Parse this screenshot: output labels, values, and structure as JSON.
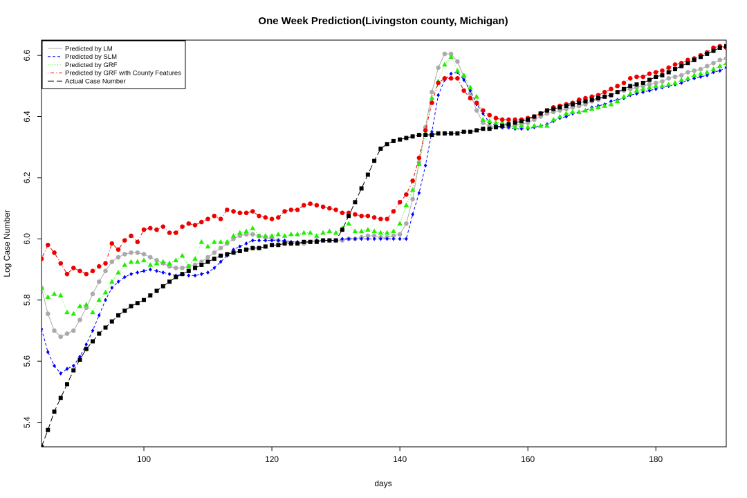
{
  "chart_data": {
    "type": "line",
    "title": "One Week Prediction(Livingston county, Michigan)",
    "xlabel": "days",
    "ylabel": "Log Case Number",
    "xlim": [
      84,
      191
    ],
    "ylim": [
      5.32,
      6.65
    ],
    "x_ticks": [
      100,
      120,
      140,
      160,
      180
    ],
    "y_ticks": [
      5.4,
      5.6,
      5.8,
      6.0,
      6.2,
      6.4,
      6.6
    ],
    "legend_position": "top-left",
    "grid": false,
    "x_start": 84,
    "series": [
      {
        "name": "Predicted by LM",
        "color": "#aaaaaa",
        "line": "solid",
        "marker": "circle",
        "values": [
          5.84,
          5.755,
          5.7,
          5.68,
          5.69,
          5.7,
          5.735,
          5.775,
          5.82,
          5.86,
          5.895,
          5.925,
          5.94,
          5.95,
          5.955,
          5.955,
          5.95,
          5.94,
          5.93,
          5.92,
          5.91,
          5.905,
          5.905,
          5.91,
          5.915,
          5.925,
          5.94,
          5.955,
          5.97,
          5.985,
          6.0,
          6.01,
          6.015,
          6.015,
          6.01,
          6.005,
          6.0,
          5.995,
          5.99,
          5.985,
          5.985,
          5.985,
          5.99,
          5.995,
          5.995,
          5.995,
          5.995,
          5.995,
          6.0,
          6.0,
          6.005,
          6.01,
          6.01,
          6.005,
          6.005,
          6.01,
          6.015,
          6.05,
          6.13,
          6.25,
          6.365,
          6.48,
          6.56,
          6.605,
          6.605,
          6.58,
          6.53,
          6.475,
          6.42,
          6.38,
          6.37,
          6.365,
          6.365,
          6.365,
          6.37,
          6.375,
          6.38,
          6.39,
          6.4,
          6.41,
          6.415,
          6.42,
          6.425,
          6.43,
          6.435,
          6.44,
          6.45,
          6.455,
          6.465,
          6.47,
          6.48,
          6.485,
          6.49,
          6.495,
          6.5,
          6.505,
          6.51,
          6.515,
          6.525,
          6.53,
          6.535,
          6.545,
          6.55,
          6.555,
          6.565,
          6.575,
          6.585,
          6.59,
          6.6,
          6.605,
          6.615
        ]
      },
      {
        "name": "Predicted by SLM",
        "color": "#0000ff",
        "line": "dashed",
        "marker": "diamond",
        "values": [
          5.705,
          5.63,
          5.585,
          5.56,
          5.575,
          5.585,
          5.615,
          5.655,
          5.7,
          5.75,
          5.8,
          5.84,
          5.86,
          5.875,
          5.885,
          5.89,
          5.895,
          5.9,
          5.895,
          5.89,
          5.885,
          5.88,
          5.885,
          5.88,
          5.88,
          5.885,
          5.89,
          5.905,
          5.925,
          5.945,
          5.965,
          5.975,
          5.985,
          5.995,
          5.995,
          5.995,
          5.995,
          5.995,
          5.995,
          5.99,
          5.99,
          5.99,
          5.99,
          5.995,
          5.995,
          5.995,
          5.995,
          6.0,
          6.0,
          6.0,
          6.0,
          6.0,
          6.0,
          6.0,
          6.0,
          6.0,
          6.0,
          6.0,
          6.08,
          6.15,
          6.24,
          6.35,
          6.47,
          6.52,
          6.54,
          6.545,
          6.52,
          6.485,
          6.44,
          6.41,
          6.38,
          6.37,
          6.365,
          6.365,
          6.36,
          6.36,
          6.36,
          6.365,
          6.37,
          6.375,
          6.385,
          6.395,
          6.4,
          6.41,
          6.415,
          6.42,
          6.43,
          6.435,
          6.44,
          6.45,
          6.455,
          6.46,
          6.47,
          6.475,
          6.48,
          6.485,
          6.49,
          6.495,
          6.5,
          6.505,
          6.51,
          6.52,
          6.525,
          6.53,
          6.535,
          6.545,
          6.55,
          6.56,
          6.575,
          6.585,
          6.6
        ]
      },
      {
        "name": "Predicted by GRF",
        "color": "#22ee00",
        "line": "dotted",
        "marker": "triangle",
        "values": [
          5.84,
          5.81,
          5.82,
          5.815,
          5.76,
          5.755,
          5.78,
          5.785,
          5.76,
          5.8,
          5.825,
          5.86,
          5.89,
          5.915,
          5.925,
          5.925,
          5.93,
          5.915,
          5.92,
          5.925,
          5.92,
          5.93,
          5.945,
          5.91,
          5.935,
          5.99,
          5.975,
          5.99,
          5.99,
          5.99,
          6.01,
          6.02,
          6.025,
          6.035,
          6.01,
          6.01,
          6.01,
          6.015,
          6.01,
          6.015,
          6.015,
          6.02,
          6.02,
          6.01,
          6.02,
          6.025,
          6.02,
          6.035,
          6.05,
          6.025,
          6.025,
          6.03,
          6.025,
          6.02,
          6.02,
          6.025,
          6.05,
          6.11,
          6.16,
          6.245,
          6.345,
          6.46,
          6.515,
          6.57,
          6.595,
          6.55,
          6.535,
          6.495,
          6.465,
          6.39,
          6.385,
          6.38,
          6.38,
          6.375,
          6.365,
          6.37,
          6.365,
          6.37,
          6.37,
          6.37,
          6.39,
          6.4,
          6.41,
          6.415,
          6.415,
          6.42,
          6.425,
          6.43,
          6.435,
          6.44,
          6.45,
          6.465,
          6.475,
          6.485,
          6.49,
          6.495,
          6.5,
          6.5,
          6.505,
          6.51,
          6.52,
          6.525,
          6.535,
          6.54,
          6.545,
          6.555,
          6.565,
          6.575,
          6.59,
          6.6,
          6.605
        ]
      },
      {
        "name": "Predicted by GRF with County Features",
        "color": "#ee0000",
        "line": "dotdash",
        "marker": "circle",
        "values": [
          5.935,
          5.98,
          5.955,
          5.92,
          5.885,
          5.905,
          5.895,
          5.885,
          5.895,
          5.91,
          5.92,
          5.985,
          5.965,
          5.995,
          6.01,
          5.99,
          6.03,
          6.035,
          6.03,
          6.04,
          6.02,
          6.02,
          6.04,
          6.05,
          6.045,
          6.055,
          6.065,
          6.075,
          6.065,
          6.095,
          6.09,
          6.085,
          6.085,
          6.09,
          6.075,
          6.07,
          6.065,
          6.07,
          6.09,
          6.095,
          6.095,
          6.11,
          6.115,
          6.11,
          6.105,
          6.1,
          6.095,
          6.085,
          6.085,
          6.08,
          6.075,
          6.075,
          6.07,
          6.065,
          6.065,
          6.09,
          6.12,
          6.145,
          6.19,
          6.265,
          6.355,
          6.445,
          6.51,
          6.525,
          6.525,
          6.525,
          6.485,
          6.46,
          6.445,
          6.42,
          6.405,
          6.395,
          6.39,
          6.39,
          6.39,
          6.39,
          6.395,
          6.4,
          6.41,
          6.42,
          6.43,
          6.435,
          6.44,
          6.445,
          6.455,
          6.46,
          6.465,
          6.47,
          6.48,
          6.49,
          6.5,
          6.51,
          6.525,
          6.53,
          6.53,
          6.54,
          6.545,
          6.55,
          6.56,
          6.57,
          6.575,
          6.585,
          6.59,
          6.6,
          6.61,
          6.625,
          6.63,
          6.625,
          6.635,
          6.64,
          6.645
        ]
      },
      {
        "name": "Actual Case Number",
        "color": "#000000",
        "line": "longdash",
        "marker": "square",
        "values": [
          5.32,
          5.375,
          5.435,
          5.48,
          5.525,
          5.57,
          5.605,
          5.64,
          5.665,
          5.69,
          5.71,
          5.73,
          5.75,
          5.765,
          5.78,
          5.79,
          5.8,
          5.815,
          5.83,
          5.845,
          5.86,
          5.875,
          5.885,
          5.895,
          5.905,
          5.915,
          5.925,
          5.935,
          5.945,
          5.95,
          5.955,
          5.96,
          5.965,
          5.97,
          5.97,
          5.975,
          5.98,
          5.98,
          5.985,
          5.985,
          5.985,
          5.99,
          5.99,
          5.99,
          5.995,
          5.995,
          5.995,
          6.03,
          6.075,
          6.12,
          6.165,
          6.21,
          6.255,
          6.295,
          6.31,
          6.32,
          6.325,
          6.33,
          6.335,
          6.34,
          6.34,
          6.34,
          6.345,
          6.345,
          6.345,
          6.345,
          6.35,
          6.35,
          6.355,
          6.36,
          6.36,
          6.365,
          6.37,
          6.375,
          6.38,
          6.385,
          6.39,
          6.4,
          6.41,
          6.42,
          6.425,
          6.43,
          6.435,
          6.44,
          6.445,
          6.45,
          6.455,
          6.46,
          6.465,
          6.47,
          6.48,
          6.49,
          6.5,
          6.505,
          6.51,
          6.52,
          6.53,
          6.535,
          6.545,
          6.555,
          6.565,
          6.575,
          6.585,
          6.595,
          6.605,
          6.615,
          6.625,
          6.63,
          6.64
        ]
      }
    ]
  }
}
